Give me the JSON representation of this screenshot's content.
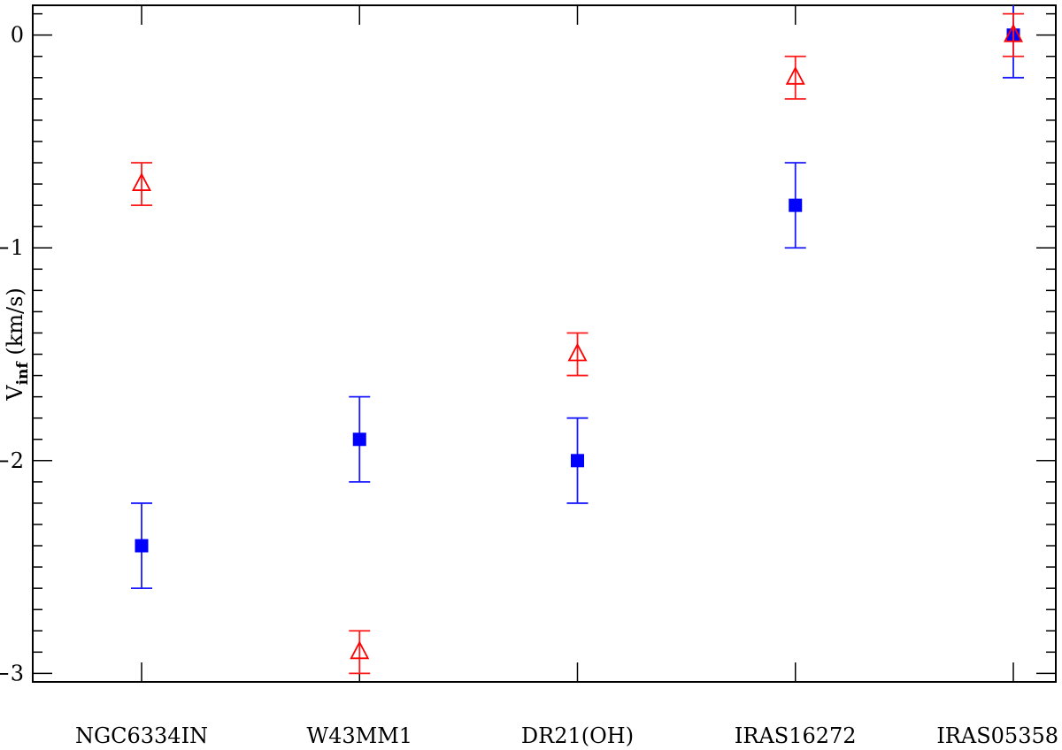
{
  "chart_data": {
    "type": "scatter",
    "title": "",
    "xlabel": "",
    "ylabel": {
      "main": "V",
      "subscript": "inf",
      "unit": " (km/s)"
    },
    "categories": [
      "NGC6334IN",
      "W43MM1",
      "DR21(OH)",
      "IRAS16272",
      "IRAS05358"
    ],
    "ylim": [
      -3.04,
      0.14
    ],
    "yticks": [
      0,
      -1,
      -2,
      -3
    ],
    "ytick_labels": [
      "0",
      "−1",
      "−2",
      "−3"
    ],
    "grid": false,
    "legend": "none",
    "series": [
      {
        "marker": "square-filled",
        "color": "#0000ff",
        "errcolor": "#1a1aff",
        "values": [
          -2.4,
          -1.9,
          -2.0,
          -0.8,
          0.0
        ],
        "yerr": [
          0.2,
          0.2,
          0.2,
          0.2,
          0.2
        ]
      },
      {
        "marker": "triangle-open",
        "color": "#ff0000",
        "errcolor": "#ff1a1a",
        "values": [
          -0.7,
          -2.9,
          -1.5,
          -0.2,
          0.0
        ],
        "yerr": [
          0.1,
          0.1,
          0.1,
          0.1,
          0.1
        ]
      }
    ]
  }
}
